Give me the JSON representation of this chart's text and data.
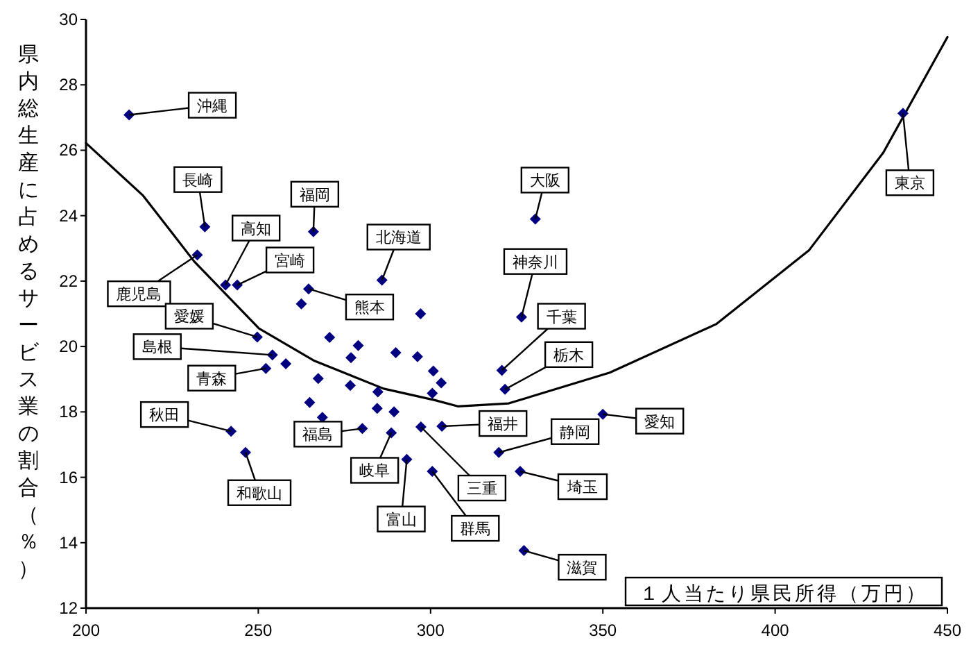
{
  "chart_data": {
    "type": "scatter",
    "xlabel": "１人当たり県民所得（万円）",
    "ylabel": "県内総生産に占めるサービス業の割合（％）",
    "xlim": [
      200,
      450
    ],
    "ylim": [
      12,
      30
    ],
    "xticks": [
      200,
      250,
      300,
      350,
      400,
      450
    ],
    "yticks": [
      12,
      14,
      16,
      18,
      20,
      22,
      24,
      26,
      28,
      30
    ],
    "grid": false,
    "marker": "diamond",
    "series": [
      {
        "color": "#000080",
        "x": [
          212.5,
          234.5,
          232.3,
          266.0,
          240.5,
          243.9,
          285.9,
          264.6,
          262.5,
          297.1,
          249.7,
          270.7,
          279.0,
          276.9,
          289.9,
          296.2,
          254.1,
          258.0,
          252.2,
          300.8,
          303.1,
          267.4,
          276.7,
          284.7,
          300.5,
          284.5,
          289.4,
          264.9,
          268.6,
          280.2,
          242.1,
          288.6,
          297.2,
          303.3,
          293.1,
          300.5,
          246.3,
          319.8,
          326.0,
          330.4,
          326.4,
          320.7,
          321.6,
          350.0,
          327.1,
          437.1
        ],
        "values": [
          27.08,
          23.66,
          22.8,
          23.51,
          21.88,
          21.88,
          22.03,
          21.76,
          21.3,
          21.0,
          20.29,
          20.28,
          20.03,
          19.66,
          19.81,
          19.69,
          19.74,
          19.47,
          19.33,
          19.25,
          18.89,
          19.02,
          18.81,
          18.61,
          18.57,
          18.11,
          18.0,
          18.29,
          17.83,
          17.49,
          17.41,
          17.36,
          17.54,
          17.56,
          16.55,
          16.18,
          16.76,
          16.76,
          16.18,
          23.9,
          20.9,
          19.27,
          18.69,
          17.93,
          13.76,
          27.13
        ]
      },
      {
        "type": "line",
        "color": "#000000",
        "marker": "none",
        "line_style": "solid",
        "x": [
          200,
          216.6,
          231.4,
          250.2,
          266.3,
          286.4,
          301.2,
          307.9,
          322.7,
          352,
          383,
          409.9,
          431.4,
          450
        ],
        "values": [
          26.22,
          24.61,
          22.6,
          20.55,
          19.56,
          18.71,
          18.36,
          18.17,
          18.26,
          19.2,
          20.69,
          22.95,
          25.93,
          29.46
        ]
      }
    ],
    "annotations": [
      {
        "text": "沖縄",
        "x": 212.5,
        "y": 27.08
      },
      {
        "text": "長崎",
        "x": 234.5,
        "y": 23.66
      },
      {
        "text": "鹿児島",
        "x": 232.3,
        "y": 22.8
      },
      {
        "text": "福岡",
        "x": 266.0,
        "y": 23.51
      },
      {
        "text": "高知",
        "x": 240.5,
        "y": 21.88
      },
      {
        "text": "宮崎",
        "x": 243.9,
        "y": 21.88
      },
      {
        "text": "北海道",
        "x": 285.9,
        "y": 22.03
      },
      {
        "text": "熊本",
        "x": 264.6,
        "y": 21.76
      },
      {
        "text": "愛媛",
        "x": 249.7,
        "y": 20.29
      },
      {
        "text": "島根",
        "x": 254.1,
        "y": 19.74
      },
      {
        "text": "青森",
        "x": 252.2,
        "y": 19.33
      },
      {
        "text": "秋田",
        "x": 242.1,
        "y": 17.41
      },
      {
        "text": "福島",
        "x": 280.2,
        "y": 17.49
      },
      {
        "text": "和歌山",
        "x": 246.3,
        "y": 16.76
      },
      {
        "text": "岐阜",
        "x": 288.6,
        "y": 17.36
      },
      {
        "text": "富山",
        "x": 293.1,
        "y": 16.55
      },
      {
        "text": "三重",
        "x": 297.2,
        "y": 17.54
      },
      {
        "text": "群馬",
        "x": 300.5,
        "y": 16.18
      },
      {
        "text": "福井",
        "x": 303.3,
        "y": 17.56
      },
      {
        "text": "静岡",
        "x": 319.8,
        "y": 16.76
      },
      {
        "text": "埼玉",
        "x": 326.0,
        "y": 16.18
      },
      {
        "text": "大阪",
        "x": 330.4,
        "y": 23.9
      },
      {
        "text": "神奈川",
        "x": 326.4,
        "y": 20.9
      },
      {
        "text": "千葉",
        "x": 320.7,
        "y": 19.27
      },
      {
        "text": "栃木",
        "x": 321.6,
        "y": 18.69
      },
      {
        "text": "愛知",
        "x": 350.0,
        "y": 17.93
      },
      {
        "text": "滋賀",
        "x": 327.1,
        "y": 13.76
      },
      {
        "text": "東京",
        "x": 437.1,
        "y": 27.13
      }
    ]
  }
}
